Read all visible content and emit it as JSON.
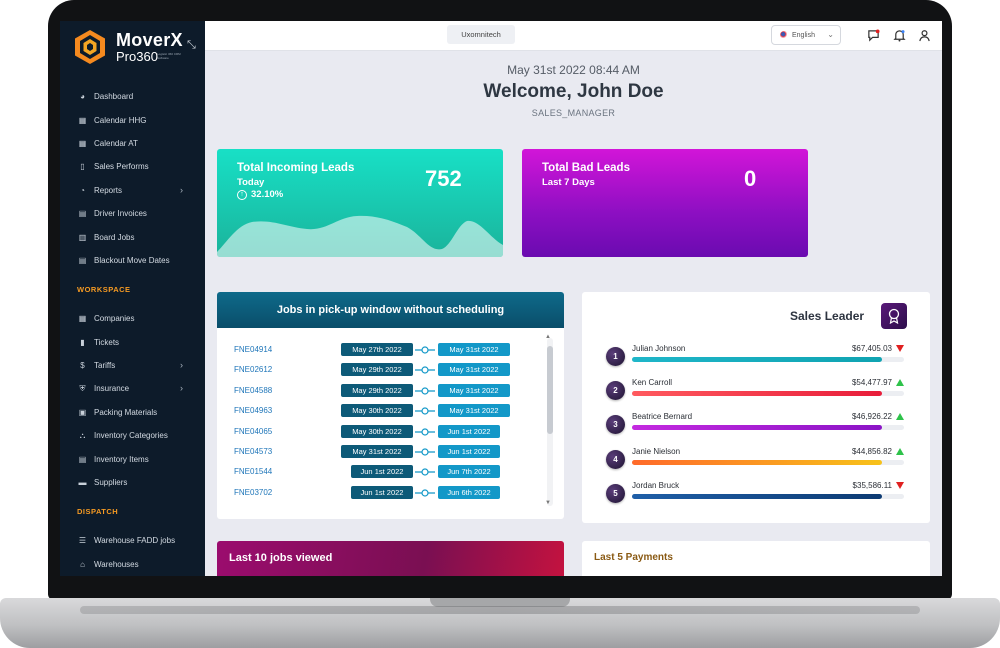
{
  "app": {
    "brand_name": "MoverX",
    "brand_sub": "Pro360",
    "brand_tagline": "Logistic 360 CRM Software"
  },
  "sidebar": {
    "items_main": [
      {
        "label": "Dashboard",
        "icon": "palette-icon"
      },
      {
        "label": "Calendar HHG",
        "icon": "calendar-icon"
      },
      {
        "label": "Calendar AT",
        "icon": "calendar-icon"
      },
      {
        "label": "Sales Performs",
        "icon": "book-icon"
      },
      {
        "label": "Reports",
        "icon": "pie-chart-icon",
        "has_children": true
      },
      {
        "label": "Driver Invoices",
        "icon": "document-icon"
      },
      {
        "label": "Board Jobs",
        "icon": "clipboard-icon"
      },
      {
        "label": "Blackout Move Dates",
        "icon": "document-icon"
      }
    ],
    "section_workspace": "WORKSPACE",
    "items_workspace": [
      {
        "label": "Companies",
        "icon": "building-icon"
      },
      {
        "label": "Tickets",
        "icon": "bookmark-icon"
      },
      {
        "label": "Tariffs",
        "icon": "dollar-icon",
        "has_children": true
      },
      {
        "label": "Insurance",
        "icon": "shield-icon",
        "has_children": true
      },
      {
        "label": "Packing Materials",
        "icon": "boxes-icon"
      },
      {
        "label": "Inventory Categories",
        "icon": "network-icon"
      },
      {
        "label": "Inventory Items",
        "icon": "document-icon"
      },
      {
        "label": "Suppliers",
        "icon": "truck-icon"
      }
    ],
    "section_dispatch": "DISPATCH",
    "items_dispatch": [
      {
        "label": "Warehouse FADD jobs",
        "icon": "list-icon"
      },
      {
        "label": "Warehouses",
        "icon": "warehouse-icon"
      }
    ]
  },
  "topbar": {
    "organization": "Uxomnitech",
    "language": "English"
  },
  "welcome": {
    "datetime": "May 31st 2022 08:44 AM",
    "greeting": "Welcome, John Doe",
    "role": "SALES_MANAGER"
  },
  "kpis": {
    "incoming": {
      "title": "Total Incoming Leads",
      "period": "Today",
      "change": "32.10%",
      "value": "752",
      "color_top": "#18e0c6",
      "color_bottom": "#1ab39b"
    },
    "bad": {
      "title": "Total Bad Leads",
      "period": "Last 7 Days",
      "value": "0",
      "color_top": "#d215d8",
      "color_bottom": "#6a0bb0"
    }
  },
  "jobs_window": {
    "title": "Jobs in pick-up window without scheduling",
    "rows": [
      {
        "id": "FNE04914",
        "start": "May 27th 2022",
        "end": "May 31st 2022"
      },
      {
        "id": "FNE02612",
        "start": "May 29th 2022",
        "end": "May 31st 2022"
      },
      {
        "id": "FNE04588",
        "start": "May 29th 2022",
        "end": "May 31st 2022"
      },
      {
        "id": "FNE04963",
        "start": "May 30th 2022",
        "end": "May 31st 2022"
      },
      {
        "id": "FNE04065",
        "start": "May 30th 2022",
        "end": "Jun 1st 2022"
      },
      {
        "id": "FNE04573",
        "start": "May 31st 2022",
        "end": "Jun 1st 2022"
      },
      {
        "id": "FNE01544",
        "start": "Jun 1st 2022",
        "end": "Jun 7th 2022"
      },
      {
        "id": "FNE03702",
        "start": "Jun 1st 2022",
        "end": "Jun 6th 2022"
      }
    ]
  },
  "sales_leader": {
    "title": "Sales Leader",
    "leaders": [
      {
        "rank": "1",
        "name": "Julian Johnson",
        "amount": "$67,405.03",
        "trend": "down",
        "fill": 0.92,
        "color_a": "#1fb6c9",
        "color_b": "#0fa3b1"
      },
      {
        "rank": "2",
        "name": "Ken Carroll",
        "amount": "$54,477.97",
        "trend": "up",
        "fill": 0.92,
        "color_a": "#ff5a5f",
        "color_b": "#e81d3a"
      },
      {
        "rank": "3",
        "name": "Beatrice Bernard",
        "amount": "$46,926.22",
        "trend": "up",
        "fill": 0.92,
        "color_a": "#c42ae0",
        "color_b": "#8b14c6"
      },
      {
        "rank": "4",
        "name": "Janie Nielson",
        "amount": "$44,856.82",
        "trend": "up",
        "fill": 0.92,
        "color_a": "#ff6a2a",
        "color_b": "#f7c21a"
      },
      {
        "rank": "5",
        "name": "Jordan Bruck",
        "amount": "$35,586.11",
        "trend": "down",
        "fill": 0.92,
        "color_a": "#1f5fa8",
        "color_b": "#0d3b73"
      }
    ]
  },
  "bottom": {
    "last_jobs_title": "Last 10 jobs viewed",
    "last_payments_title": "Last 5 Payments"
  }
}
